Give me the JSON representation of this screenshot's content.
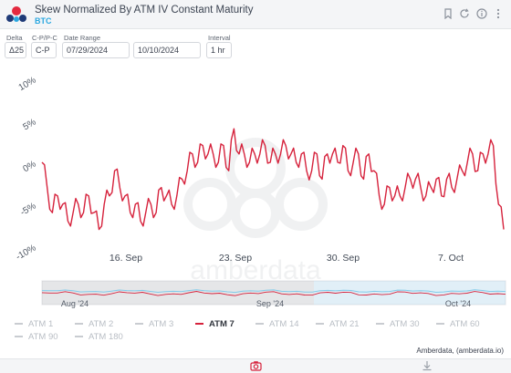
{
  "header": {
    "title": "Skew Normalized By ATM IV Constant Maturity",
    "subtitle": "BTC",
    "icons": [
      "bookmark-icon",
      "refresh-icon",
      "info-icon",
      "more-vertical-icon"
    ]
  },
  "controls": {
    "delta": {
      "label": "Delta",
      "value": "Δ25"
    },
    "cpc": {
      "label": "C-P/P-C",
      "value": "C-P"
    },
    "date_range": {
      "label": "Date Range",
      "start": "07/29/2024",
      "end": "10/10/2024"
    },
    "interval": {
      "label": "Interval",
      "value": "1 hr"
    }
  },
  "chart_data": {
    "type": "line",
    "title": "Skew Normalized By ATM IV Constant Maturity",
    "ylim": [
      -10,
      10
    ],
    "y_ticks": [
      "10%",
      "5%",
      "0%",
      "-5%",
      "-10%"
    ],
    "x_ticks": [
      "16. Sep",
      "23. Sep",
      "30. Sep",
      "7. Oct"
    ],
    "navigator_ticks": [
      "Aug '24",
      "Sep '24",
      "Oct '24"
    ],
    "grid": false,
    "series": [
      {
        "name": "ATM 7",
        "color": "#d6223c",
        "x_range": [
          "2024-09-10",
          "2024-10-10"
        ],
        "values": [
          0,
          -3,
          -6,
          -4,
          -5,
          -7,
          -6,
          -5,
          -6,
          -4,
          -6,
          -8,
          -5,
          -4,
          -1,
          -3,
          -4,
          -6,
          -5,
          -7,
          -6,
          -5,
          -6,
          -3,
          -4,
          -5,
          -4,
          -2,
          -1,
          1,
          0,
          2,
          1,
          1,
          0,
          2,
          -1,
          4,
          1,
          1,
          0,
          1,
          1,
          2,
          0,
          1,
          1,
          2,
          1,
          0,
          1,
          -1,
          -1,
          1,
          -2,
          1,
          1,
          0,
          2,
          -1,
          0,
          1,
          -2,
          1,
          -1,
          -4,
          -5,
          -3,
          -4,
          -4,
          -3,
          -2,
          -2,
          -3,
          -4,
          -3,
          -2,
          -4,
          -2,
          -3,
          -2,
          -1,
          0,
          1,
          -1,
          1,
          1,
          2,
          -5,
          -8
        ]
      }
    ],
    "legend": [
      "ATM 1",
      "ATM 2",
      "ATM 3",
      "ATM 7",
      "ATM 14",
      "ATM 21",
      "ATM 30",
      "ATM 60",
      "ATM 90",
      "ATM 180"
    ],
    "active_series": "ATM 7",
    "legend_placement": "bottom"
  },
  "credits": "Amberdata, (amberdata.io)",
  "watermark": "amberdata",
  "footer": {
    "icons": [
      "camera-icon",
      "download-icon"
    ]
  }
}
